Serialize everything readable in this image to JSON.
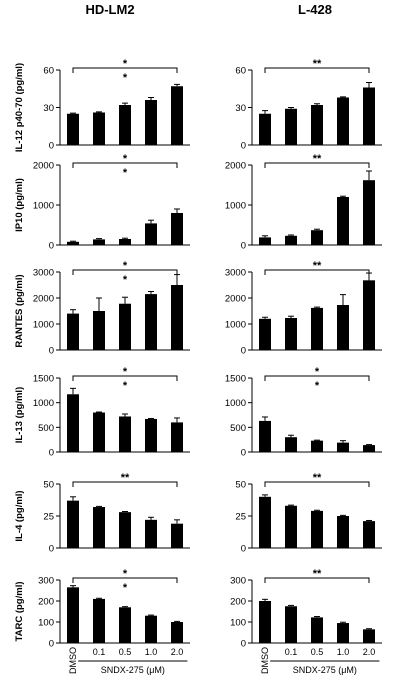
{
  "chart_data": {
    "type": "bar",
    "columns": [
      "HD-LM2",
      "L-428"
    ],
    "categories": [
      "DMSO",
      "0.1",
      "0.5",
      "1.0",
      "2.0"
    ],
    "xlabel": "SNDX-275 (μM)",
    "bar_color": "#000000",
    "panels": [
      {
        "row": 0,
        "col": 0,
        "ylabel": "IL-12 p40-70 (pg/ml)",
        "ylim": [
          0,
          60
        ],
        "yticks": [
          "0",
          "30",
          "60"
        ],
        "values": [
          25,
          26,
          32,
          36,
          47
        ],
        "errors": [
          0.5,
          0.5,
          1.5,
          2,
          1.5
        ],
        "significance": [
          "*",
          "*"
        ]
      },
      {
        "row": 0,
        "col": 1,
        "ylabel": "",
        "ylim": [
          0,
          60
        ],
        "yticks": [
          "0",
          "30",
          "60"
        ],
        "values": [
          25,
          29,
          32,
          38,
          46
        ],
        "errors": [
          2.5,
          1,
          1,
          0.5,
          4
        ],
        "significance": [
          "**"
        ]
      },
      {
        "row": 1,
        "col": 0,
        "ylabel": "IP10 (pg/ml)",
        "ylim": [
          0,
          2000
        ],
        "yticks": [
          "0",
          "1000",
          "2000"
        ],
        "values": [
          80,
          140,
          150,
          540,
          800
        ],
        "errors": [
          15,
          20,
          20,
          80,
          100
        ],
        "significance": [
          "*",
          "*"
        ]
      },
      {
        "row": 1,
        "col": 1,
        "ylabel": "",
        "ylim": [
          0,
          2000
        ],
        "yticks": [
          "0",
          "1000",
          "2000"
        ],
        "values": [
          190,
          230,
          370,
          1200,
          1620
        ],
        "errors": [
          40,
          20,
          25,
          20,
          230
        ],
        "significance": [
          "**"
        ]
      },
      {
        "row": 2,
        "col": 0,
        "ylabel": "RANTES (pg/ml)",
        "ylim": [
          0,
          3000
        ],
        "yticks": [
          "0",
          "1000",
          "2000",
          "3000"
        ],
        "values": [
          1400,
          1500,
          1780,
          2150,
          2500
        ],
        "errors": [
          150,
          500,
          250,
          100,
          400
        ],
        "significance": [
          "*",
          "*"
        ]
      },
      {
        "row": 2,
        "col": 1,
        "ylabel": "",
        "ylim": [
          0,
          3000
        ],
        "yticks": [
          "0",
          "1000",
          "2000",
          "3000"
        ],
        "values": [
          1200,
          1230,
          1620,
          1730,
          2680
        ],
        "errors": [
          60,
          70,
          30,
          400,
          280
        ],
        "significance": [
          "**"
        ]
      },
      {
        "row": 3,
        "col": 0,
        "ylabel": "IL-13 (pg/ml)",
        "ylim": [
          0,
          1500
        ],
        "yticks": [
          "0",
          "500",
          "1000",
          "1500"
        ],
        "values": [
          1170,
          800,
          720,
          670,
          600
        ],
        "errors": [
          120,
          10,
          50,
          10,
          90
        ],
        "significance": [
          "*",
          "*"
        ]
      },
      {
        "row": 3,
        "col": 1,
        "ylabel": "",
        "ylim": [
          0,
          1500
        ],
        "yticks": [
          "0",
          "500",
          "1000",
          "1500"
        ],
        "values": [
          630,
          300,
          230,
          190,
          140
        ],
        "errors": [
          80,
          40,
          10,
          40,
          10
        ],
        "significance": [
          "*",
          "*"
        ]
      },
      {
        "row": 4,
        "col": 0,
        "ylabel": "IL-4 (pg/ml)",
        "ylim": [
          0,
          50
        ],
        "yticks": [
          "0",
          "25",
          "50"
        ],
        "values": [
          37,
          32,
          28,
          22,
          19
        ],
        "errors": [
          3,
          0.5,
          0.5,
          2,
          3
        ],
        "significance": [
          "**"
        ]
      },
      {
        "row": 4,
        "col": 1,
        "ylabel": "",
        "ylim": [
          0,
          50
        ],
        "yticks": [
          "0",
          "25",
          "50"
        ],
        "values": [
          40,
          33,
          29,
          25,
          21
        ],
        "errors": [
          1.5,
          0.5,
          0.5,
          0.5,
          0.5
        ],
        "significance": [
          "**"
        ]
      },
      {
        "row": 5,
        "col": 0,
        "ylabel": "TARC (pg/ml)",
        "ylim": [
          0,
          300
        ],
        "yticks": [
          "0",
          "100",
          "200",
          "300"
        ],
        "values": [
          265,
          210,
          170,
          130,
          100
        ],
        "errors": [
          8,
          3,
          3,
          3,
          3
        ],
        "significance": [
          "*",
          "*"
        ]
      },
      {
        "row": 5,
        "col": 1,
        "ylabel": "",
        "ylim": [
          0,
          300
        ],
        "yticks": [
          "0",
          "100",
          "200",
          "300"
        ],
        "values": [
          200,
          175,
          122,
          95,
          65
        ],
        "errors": [
          8,
          4,
          4,
          4,
          3
        ],
        "significance": [
          "**"
        ]
      }
    ]
  }
}
